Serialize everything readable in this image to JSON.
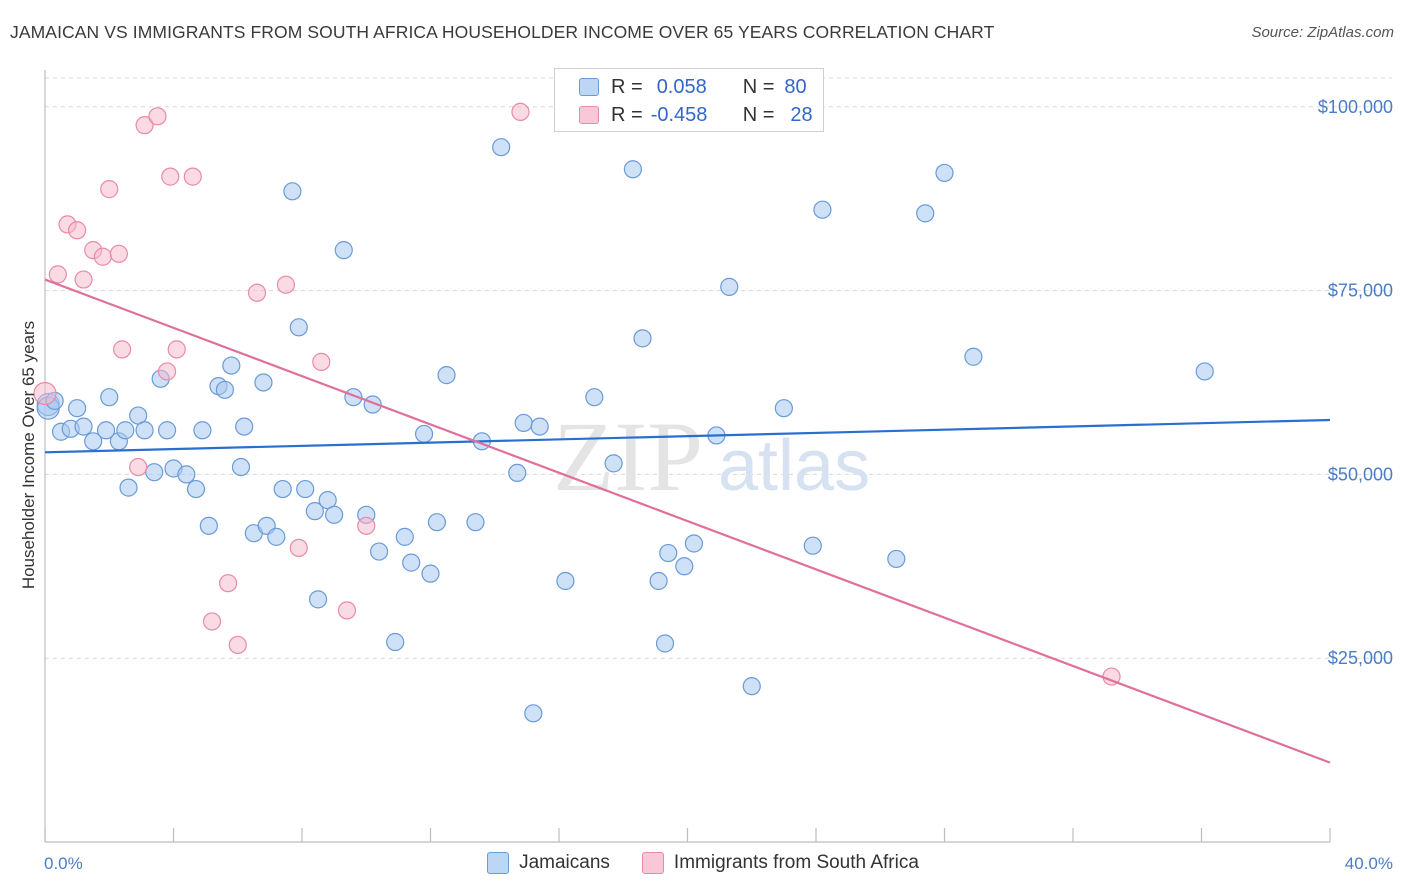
{
  "header": {
    "title": "JAMAICAN VS IMMIGRANTS FROM SOUTH AFRICA HOUSEHOLDER INCOME OVER 65 YEARS CORRELATION CHART",
    "source": "Source: ZipAtlas.com"
  },
  "watermark": {
    "zip": "ZIP",
    "atlas": "atlas"
  },
  "legend": {
    "rows": [
      {
        "r_label": "R =",
        "r_value": "0.058",
        "n_label": "N =",
        "n_value": "80"
      },
      {
        "r_label": "R =",
        "r_value": "-0.458",
        "n_label": "N =",
        "n_value": "28"
      }
    ]
  },
  "bottom_legend": {
    "series1": "Jamaicans",
    "series2": "Immigrants from South Africa"
  },
  "colors": {
    "blue_fill": "#a8c8f0",
    "blue_stroke": "#6a9ad8",
    "blue_line": "#2a6fcf",
    "pink_fill": "#f6b8ca",
    "pink_stroke": "#e88aa8",
    "pink_line": "#e0709a",
    "grid": "#d8d8d8",
    "tick_text": "#4a7cc7"
  },
  "chart_data": {
    "type": "scatter",
    "title": "JAMAICAN VS IMMIGRANTS FROM SOUTH AFRICA HOUSEHOLDER INCOME OVER 65 YEARS CORRELATION CHART",
    "xlabel": "",
    "ylabel": "Householder Income Over 65 years",
    "xlim": [
      0,
      40
    ],
    "ylim": [
      0,
      105000
    ],
    "x_tick_labels": [
      "0.0%",
      "40.0%"
    ],
    "y_ticks": [
      25000,
      50000,
      75000,
      100000
    ],
    "y_tick_labels": [
      "$25,000",
      "$50,000",
      "$75,000",
      "$100,000"
    ],
    "series": [
      {
        "name": "Jamaicans",
        "color": "#a8c8f0",
        "trend": {
          "x": [
            0,
            40
          ],
          "y": [
            53000,
            57400
          ]
        },
        "points": [
          [
            0.1,
            59500
          ],
          [
            0.1,
            59000
          ],
          [
            0.5,
            55800
          ],
          [
            0.8,
            56200
          ],
          [
            1.0,
            59000
          ],
          [
            1.2,
            56500
          ],
          [
            1.5,
            54500
          ],
          [
            1.9,
            56000
          ],
          [
            2.0,
            60500
          ],
          [
            2.3,
            54500
          ],
          [
            2.5,
            56000
          ],
          [
            2.6,
            48200
          ],
          [
            2.9,
            58000
          ],
          [
            3.1,
            56000
          ],
          [
            3.4,
            50300
          ],
          [
            3.6,
            63000
          ],
          [
            3.8,
            56000
          ],
          [
            4.0,
            50800
          ],
          [
            4.4,
            50000
          ],
          [
            4.7,
            48000
          ],
          [
            4.9,
            56000
          ],
          [
            5.1,
            43000
          ],
          [
            5.4,
            62000
          ],
          [
            5.6,
            61500
          ],
          [
            5.8,
            64800
          ],
          [
            6.1,
            51000
          ],
          [
            6.2,
            56500
          ],
          [
            6.5,
            42000
          ],
          [
            6.8,
            62500
          ],
          [
            6.9,
            43000
          ],
          [
            7.2,
            41500
          ],
          [
            7.4,
            48000
          ],
          [
            7.7,
            88500
          ],
          [
            7.9,
            70000
          ],
          [
            8.1,
            48000
          ],
          [
            8.4,
            45000
          ],
          [
            8.5,
            33000
          ],
          [
            8.8,
            46500
          ],
          [
            9.0,
            44500
          ],
          [
            9.3,
            80500
          ],
          [
            9.6,
            60500
          ],
          [
            10.0,
            44500
          ],
          [
            10.2,
            59500
          ],
          [
            10.4,
            39500
          ],
          [
            10.9,
            27200
          ],
          [
            11.2,
            41500
          ],
          [
            11.4,
            38000
          ],
          [
            11.8,
            55500
          ],
          [
            12.0,
            36500
          ],
          [
            12.2,
            43500
          ],
          [
            12.5,
            63500
          ],
          [
            13.4,
            43500
          ],
          [
            13.6,
            54500
          ],
          [
            14.2,
            94500
          ],
          [
            14.7,
            50200
          ],
          [
            14.9,
            57000
          ],
          [
            15.2,
            17500
          ],
          [
            15.4,
            56500
          ],
          [
            16.2,
            35500
          ],
          [
            17.1,
            60500
          ],
          [
            17.7,
            51500
          ],
          [
            18.3,
            91500
          ],
          [
            18.6,
            68500
          ],
          [
            19.1,
            35500
          ],
          [
            19.3,
            27000
          ],
          [
            19.4,
            39300
          ],
          [
            19.9,
            37500
          ],
          [
            20.2,
            40600
          ],
          [
            20.9,
            55300
          ],
          [
            21.3,
            75500
          ],
          [
            22.0,
            21200
          ],
          [
            23.0,
            59000
          ],
          [
            23.9,
            40300
          ],
          [
            24.2,
            86000
          ],
          [
            26.5,
            38500
          ],
          [
            27.4,
            85500
          ],
          [
            28.0,
            91000
          ],
          [
            28.9,
            66000
          ],
          [
            36.1,
            64000
          ],
          [
            0.3,
            60000
          ]
        ]
      },
      {
        "name": "Immigrants from South Africa",
        "color": "#f6b8ca",
        "trend": {
          "x": [
            0,
            40
          ],
          "y": [
            76500,
            10800
          ]
        },
        "points": [
          [
            0.0,
            61000
          ],
          [
            0.4,
            77200
          ],
          [
            0.7,
            84000
          ],
          [
            1.0,
            83200
          ],
          [
            1.2,
            76500
          ],
          [
            1.5,
            80500
          ],
          [
            1.8,
            79600
          ],
          [
            2.0,
            88800
          ],
          [
            2.3,
            80000
          ],
          [
            2.4,
            67000
          ],
          [
            2.9,
            51000
          ],
          [
            3.1,
            97500
          ],
          [
            3.5,
            98700
          ],
          [
            3.8,
            64000
          ],
          [
            3.9,
            90500
          ],
          [
            4.1,
            67000
          ],
          [
            4.6,
            90500
          ],
          [
            5.2,
            30000
          ],
          [
            5.7,
            35200
          ],
          [
            6.0,
            26800
          ],
          [
            6.6,
            74700
          ],
          [
            7.5,
            75800
          ],
          [
            7.9,
            40000
          ],
          [
            8.6,
            65300
          ],
          [
            9.4,
            31500
          ],
          [
            10.0,
            43000
          ],
          [
            14.8,
            99300
          ],
          [
            33.2,
            22500
          ]
        ]
      }
    ]
  }
}
